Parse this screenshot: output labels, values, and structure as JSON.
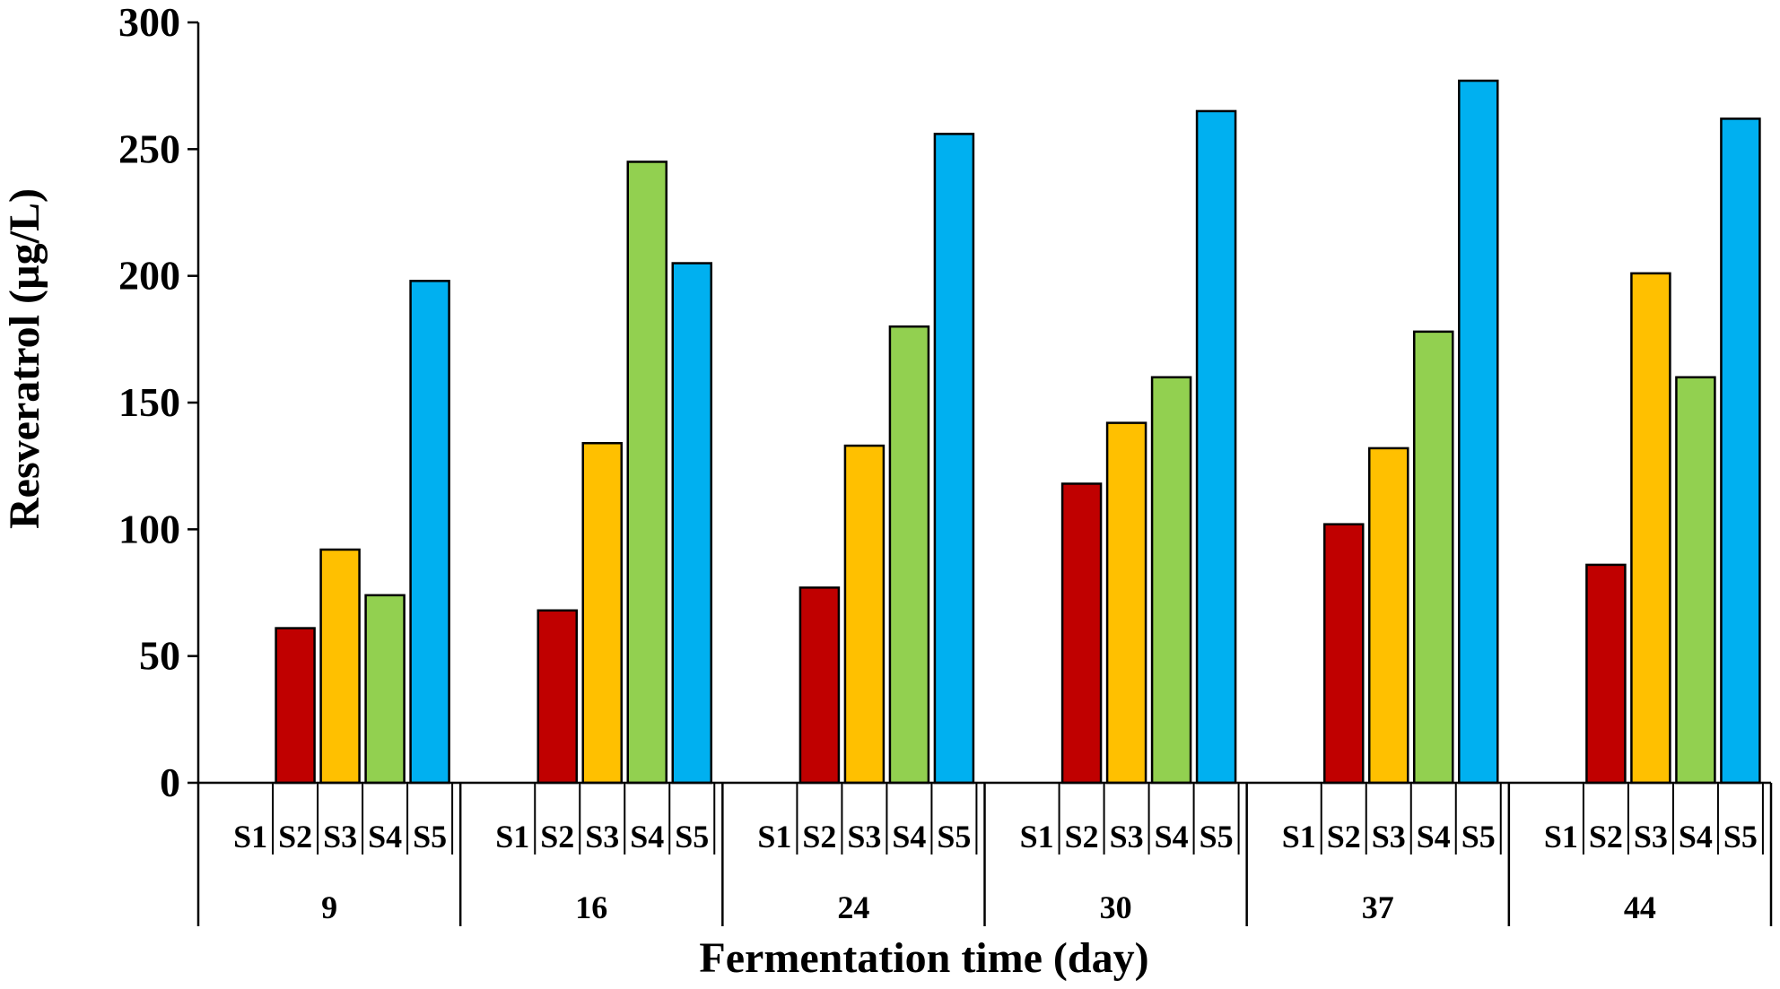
{
  "chart_data": {
    "type": "bar",
    "title": "",
    "xlabel": "Fermentation time (day)",
    "ylabel": "Resveratrol (µg/L)",
    "ylim": [
      0,
      300
    ],
    "yticks": [
      "0",
      "50",
      "100",
      "150",
      "200",
      "250",
      "300"
    ],
    "groups": [
      "9",
      "16",
      "24",
      "30",
      "37",
      "44"
    ],
    "subcategories": [
      "S1",
      "S2",
      "S3",
      "S4",
      "S5"
    ],
    "series": [
      {
        "name": "S1",
        "color": "#ffffff",
        "values": [
          0,
          0,
          0,
          0,
          0,
          0
        ]
      },
      {
        "name": "S2",
        "color": "#c00000",
        "values": [
          61,
          68,
          77,
          118,
          102,
          86
        ]
      },
      {
        "name": "S3",
        "color": "#ffc000",
        "values": [
          92,
          134,
          133,
          142,
          132,
          201
        ]
      },
      {
        "name": "S4",
        "color": "#92d050",
        "values": [
          74,
          245,
          180,
          160,
          178,
          160
        ]
      },
      {
        "name": "S5",
        "color": "#00b0f0",
        "values": [
          198,
          205,
          256,
          265,
          277,
          262
        ]
      }
    ],
    "grid": false,
    "legend": "none"
  }
}
